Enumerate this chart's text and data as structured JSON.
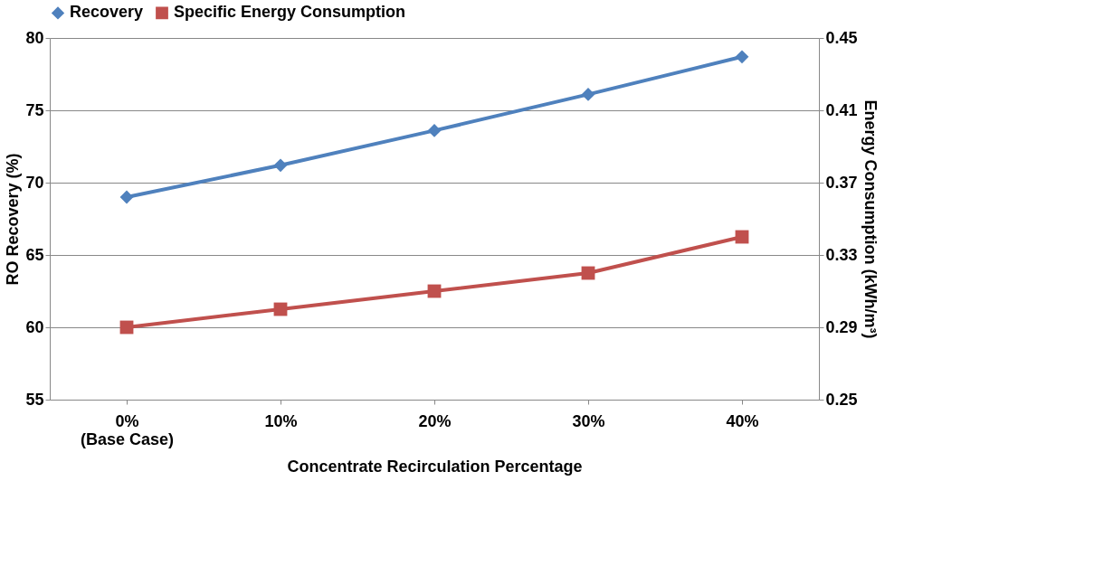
{
  "chart_data": {
    "type": "line",
    "xlabel": "Concentrate Recirculation Percentage",
    "ylabel": "RO Recovery (%)",
    "y2label": "Energy Consumption (kWh/m³)",
    "categories": [
      "0%\n(Base Case)",
      "10%",
      "20%",
      "30%",
      "40%"
    ],
    "series": [
      {
        "name": "Recovery",
        "color": "#4f81bd",
        "marker": "diamond",
        "values": [
          69.0,
          71.2,
          73.6,
          76.1,
          78.7
        ]
      },
      {
        "name": "Specific Energy Consumption",
        "color": "#c0504d",
        "marker": "square",
        "axis": "y2",
        "values": [
          0.29,
          0.3,
          0.31,
          0.32,
          0.34
        ]
      }
    ],
    "ylim": [
      55,
      80
    ],
    "yticks": [
      55,
      60,
      65,
      70,
      75,
      80
    ],
    "y2lim": [
      0.25,
      0.45
    ],
    "y2ticks": [
      0.25,
      0.29,
      0.33,
      0.37,
      0.41,
      0.45
    ],
    "grid": "y",
    "legend": "top",
    "line_style": "solid"
  }
}
